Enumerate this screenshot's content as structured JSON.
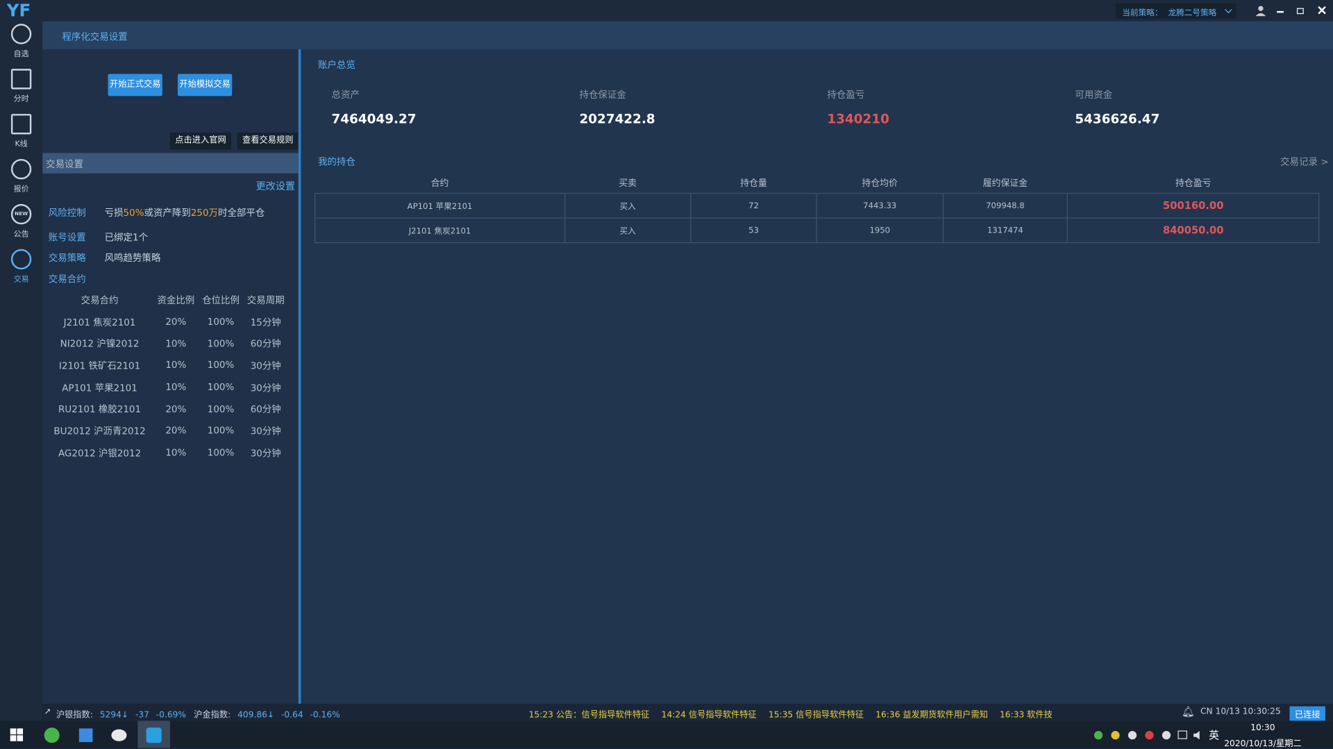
{
  "app": {
    "logo": "YF",
    "strategy_label": "当前策略：",
    "strategy_name": "龙腾二号策略"
  },
  "sidebar": [
    "自选",
    "分时",
    "K线",
    "报价",
    "公告",
    "交易"
  ],
  "sidebar_badge": "NEW",
  "header": {
    "title": "程序化交易设置"
  },
  "buttons": {
    "live": "开始正式交易",
    "sim": "开始模拟交易",
    "site": "点击进入官网",
    "rules": "查看交易规则"
  },
  "settings": {
    "title": "交易设置",
    "edit": "更改设置",
    "risk": {
      "label": "风险控制",
      "parts": [
        "亏损",
        "50%",
        "或资产降到",
        "250万",
        "时全部平仓"
      ]
    },
    "account": {
      "label": "账号设置",
      "value": "已绑定1个"
    },
    "strategy": {
      "label": "交易策略",
      "value": "风鸣趋势策略"
    },
    "contracts": {
      "label": "交易合约",
      "headers": [
        "交易合约",
        "资金比例",
        "仓位比例",
        "交易周期"
      ],
      "rows": [
        [
          "J2101  焦炭2101",
          "20%",
          "100%",
          "15分钟"
        ],
        [
          "NI2012  沪镍2012",
          "10%",
          "100%",
          "60分钟"
        ],
        [
          "I2101  铁矿石2101",
          "10%",
          "100%",
          "30分钟"
        ],
        [
          "AP101  苹果2101",
          "10%",
          "100%",
          "30分钟"
        ],
        [
          "RU2101  橡胶2101",
          "20%",
          "100%",
          "60分钟"
        ],
        [
          "BU2012  沪沥青2012",
          "20%",
          "100%",
          "30分钟"
        ],
        [
          "AG2012  沪银2012",
          "10%",
          "100%",
          "30分钟"
        ]
      ]
    }
  },
  "overview": {
    "title": "账户总览",
    "items": [
      {
        "label": "总资产",
        "value": "7464049.27"
      },
      {
        "label": "持仓保证金",
        "value": "2027422.8"
      },
      {
        "label": "持仓盈亏",
        "value": "1340210"
      },
      {
        "label": "可用资金",
        "value": "5436626.47"
      }
    ]
  },
  "positions": {
    "title": "我的持仓",
    "records": "交易记录 >",
    "headers": [
      "合约",
      "买卖",
      "持仓量",
      "持仓均价",
      "履约保证金",
      "持仓盈亏"
    ],
    "rows": [
      [
        "AP101  苹果2101",
        "买入",
        "72",
        "7443.33",
        "709948.8",
        "500160.00"
      ],
      [
        "J2101  焦炭2101",
        "买入",
        "53",
        "1950",
        "1317474",
        "840050.00"
      ]
    ]
  },
  "status": {
    "silver": [
      "沪银指数:",
      "5294↓",
      "-37",
      "-0.69%"
    ],
    "gold": [
      "沪金指数:",
      "409.86↓",
      "-0.64",
      "-0.16%"
    ],
    "ticker": [
      "15:23  公告：信号指导软件特征",
      "14:24  信号指导软件特征",
      "15:35  信号指导软件特征",
      "16:36  益发期货软件用户需知",
      "16:33  软件技"
    ],
    "clock": "CN 10/13 10:30:25",
    "connected": "已连接"
  },
  "taskbar": {
    "ime": "英",
    "time": "10:30",
    "date": "2020/10/13/星期二"
  }
}
